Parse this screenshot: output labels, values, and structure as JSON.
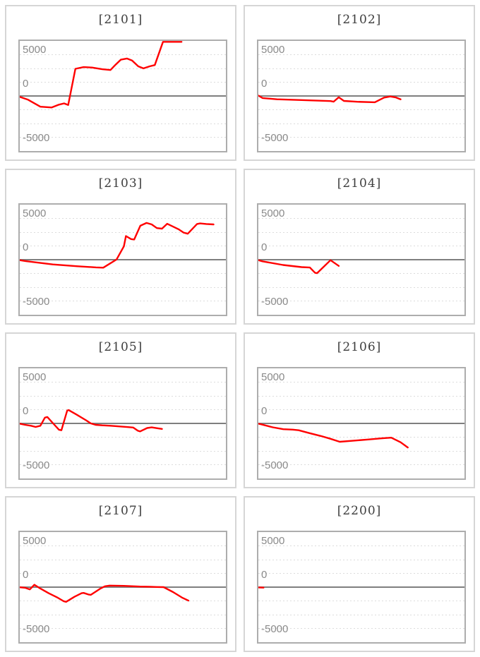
{
  "page": {
    "background": "#ffffff",
    "description": "Grid of eight pachinko-style slump line graphs, 2 columns by 4 rows"
  },
  "axis": {
    "tick_labels": [
      "5000",
      "0",
      "-5000"
    ],
    "ymin": -6680,
    "ymax": 6680,
    "minor_gridline_step": 1670,
    "minor_gridline_count": 7,
    "zero_line": "solid",
    "grid_style": "dotted",
    "label_color": "#8a8a8a",
    "gridline_color": "#dcdcdc",
    "zero_line_color": "#7f7f7f",
    "plot_border_color": "#adadad",
    "card_border_color": "#d6d6d6",
    "title_color": "#3d3d3d"
  },
  "line_color": "#ff0000",
  "chart_data": [
    {
      "type": "line",
      "id": "2101",
      "title": "[2101]",
      "points": [
        [
          0.0,
          -100
        ],
        [
          0.04,
          -450
        ],
        [
          0.1,
          -1300
        ],
        [
          0.155,
          -1400
        ],
        [
          0.19,
          -1050
        ],
        [
          0.215,
          -900
        ],
        [
          0.235,
          -1100
        ],
        [
          0.27,
          3300
        ],
        [
          0.31,
          3500
        ],
        [
          0.35,
          3450
        ],
        [
          0.4,
          3250
        ],
        [
          0.44,
          3150
        ],
        [
          0.465,
          3800
        ],
        [
          0.49,
          4400
        ],
        [
          0.52,
          4550
        ],
        [
          0.545,
          4300
        ],
        [
          0.575,
          3600
        ],
        [
          0.6,
          3350
        ],
        [
          0.63,
          3600
        ],
        [
          0.655,
          3750
        ],
        [
          0.695,
          7300
        ],
        [
          0.785,
          7300
        ]
      ]
    },
    {
      "type": "line",
      "id": "2102",
      "title": "[2102]",
      "points": [
        [
          0.0,
          50
        ],
        [
          0.02,
          -250
        ],
        [
          0.09,
          -400
        ],
        [
          0.21,
          -500
        ],
        [
          0.35,
          -620
        ],
        [
          0.365,
          -690
        ],
        [
          0.39,
          -150
        ],
        [
          0.415,
          -600
        ],
        [
          0.48,
          -700
        ],
        [
          0.565,
          -760
        ],
        [
          0.61,
          -200
        ],
        [
          0.64,
          -60
        ],
        [
          0.665,
          -160
        ],
        [
          0.69,
          -400
        ]
      ]
    },
    {
      "type": "line",
      "id": "2103",
      "title": "[2103]",
      "points": [
        [
          0.0,
          -60
        ],
        [
          0.03,
          -180
        ],
        [
          0.16,
          -570
        ],
        [
          0.28,
          -800
        ],
        [
          0.37,
          -930
        ],
        [
          0.405,
          -970
        ],
        [
          0.47,
          30
        ],
        [
          0.505,
          1620
        ],
        [
          0.515,
          2870
        ],
        [
          0.54,
          2500
        ],
        [
          0.555,
          2450
        ],
        [
          0.585,
          4120
        ],
        [
          0.615,
          4460
        ],
        [
          0.64,
          4280
        ],
        [
          0.665,
          3840
        ],
        [
          0.69,
          3770
        ],
        [
          0.715,
          4360
        ],
        [
          0.77,
          3700
        ],
        [
          0.795,
          3290
        ],
        [
          0.815,
          3150
        ],
        [
          0.86,
          4330
        ],
        [
          0.875,
          4400
        ],
        [
          0.905,
          4330
        ],
        [
          0.94,
          4280
        ]
      ]
    },
    {
      "type": "line",
      "id": "2104",
      "title": "[2104]",
      "points": [
        [
          0.0,
          -50
        ],
        [
          0.02,
          -200
        ],
        [
          0.12,
          -640
        ],
        [
          0.21,
          -900
        ],
        [
          0.25,
          -950
        ],
        [
          0.275,
          -1590
        ],
        [
          0.285,
          -1640
        ],
        [
          0.35,
          -60
        ],
        [
          0.39,
          -750
        ]
      ]
    },
    {
      "type": "line",
      "id": "2105",
      "title": "[2105]",
      "points": [
        [
          0.0,
          -30
        ],
        [
          0.026,
          -170
        ],
        [
          0.054,
          -280
        ],
        [
          0.077,
          -430
        ],
        [
          0.1,
          -280
        ],
        [
          0.122,
          700
        ],
        [
          0.134,
          780
        ],
        [
          0.162,
          0
        ],
        [
          0.19,
          -760
        ],
        [
          0.202,
          -830
        ],
        [
          0.23,
          1560
        ],
        [
          0.237,
          1620
        ],
        [
          0.276,
          1060
        ],
        [
          0.322,
          380
        ],
        [
          0.345,
          0
        ],
        [
          0.368,
          -170
        ],
        [
          0.4,
          -230
        ],
        [
          0.44,
          -280
        ],
        [
          0.48,
          -360
        ],
        [
          0.52,
          -440
        ],
        [
          0.55,
          -500
        ],
        [
          0.573,
          -890
        ],
        [
          0.584,
          -970
        ],
        [
          0.618,
          -560
        ],
        [
          0.64,
          -480
        ],
        [
          0.675,
          -620
        ],
        [
          0.69,
          -670
        ]
      ]
    },
    {
      "type": "line",
      "id": "2106",
      "title": "[2106]",
      "points": [
        [
          0.0,
          -30
        ],
        [
          0.013,
          -100
        ],
        [
          0.07,
          -470
        ],
        [
          0.121,
          -700
        ],
        [
          0.167,
          -750
        ],
        [
          0.196,
          -830
        ],
        [
          0.247,
          -1170
        ],
        [
          0.304,
          -1530
        ],
        [
          0.349,
          -1860
        ],
        [
          0.384,
          -2140
        ],
        [
          0.395,
          -2230
        ],
        [
          0.463,
          -2090
        ],
        [
          0.532,
          -1950
        ],
        [
          0.6,
          -1810
        ],
        [
          0.645,
          -1730
        ],
        [
          0.69,
          -2290
        ],
        [
          0.725,
          -2920
        ]
      ]
    },
    {
      "type": "line",
      "id": "2107",
      "title": "[2107]",
      "points": [
        [
          0.0,
          -20
        ],
        [
          0.026,
          -80
        ],
        [
          0.049,
          -270
        ],
        [
          0.071,
          290
        ],
        [
          0.094,
          -80
        ],
        [
          0.14,
          -740
        ],
        [
          0.185,
          -1290
        ],
        [
          0.214,
          -1720
        ],
        [
          0.225,
          -1780
        ],
        [
          0.265,
          -1170
        ],
        [
          0.3,
          -740
        ],
        [
          0.31,
          -700
        ],
        [
          0.333,
          -890
        ],
        [
          0.345,
          -930
        ],
        [
          0.39,
          -190
        ],
        [
          0.413,
          100
        ],
        [
          0.436,
          190
        ],
        [
          0.504,
          150
        ],
        [
          0.584,
          70
        ],
        [
          0.63,
          50
        ],
        [
          0.664,
          20
        ],
        [
          0.698,
          0
        ],
        [
          0.744,
          -600
        ],
        [
          0.789,
          -1290
        ],
        [
          0.818,
          -1640
        ]
      ]
    },
    {
      "type": "line",
      "id": "2200",
      "title": "[2200]",
      "points": [
        [
          0.0,
          -30
        ],
        [
          0.025,
          -60
        ]
      ]
    }
  ]
}
